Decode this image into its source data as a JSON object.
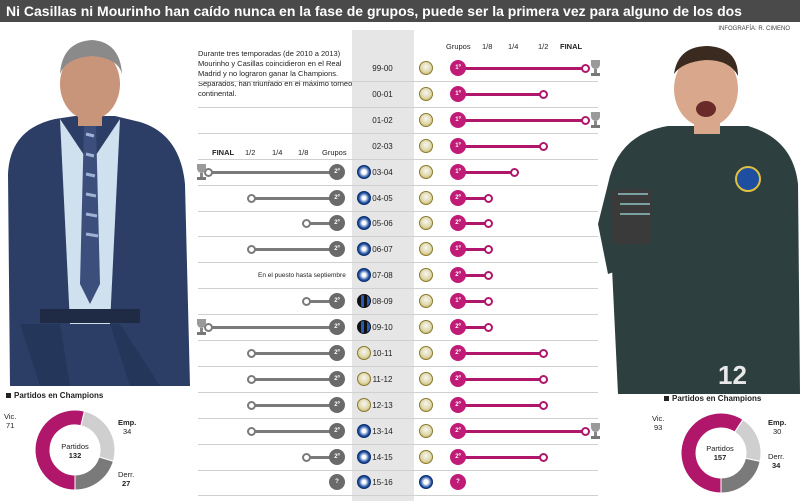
{
  "header": {
    "title": "Ni Casillas ni Mourinho han caído nunca en la fase de grupos, puede ser la primera vez para alguno de los dos",
    "credit": "INFOGRAFÍA: R. CIMENO"
  },
  "intro": {
    "text_regular": "Durante tres temporadas (de 2010 a 2013) Mourinho y Casillas coincidieron en el Real Madrid y no lograron ganar la Champions. Separados, han triunfado en el máximo torneo continental."
  },
  "legend_left": {
    "final": "FINAL",
    "half": "1/2",
    "quarter": "1/4",
    "eighth": "1/8",
    "groups": "Grupos"
  },
  "legend_right": {
    "groups": "Grupos",
    "eighth": "1/8",
    "quarter": "1/4",
    "half": "1/2",
    "final": "FINAL"
  },
  "seasons": [
    {
      "label": "99-00",
      "right_badge": "real-madrid",
      "right_reach": "final",
      "right_trophy": true,
      "left": null
    },
    {
      "label": "00-01",
      "right_badge": "real-madrid",
      "right_reach": "half",
      "right_trophy": false,
      "left": null
    },
    {
      "label": "01-02",
      "right_badge": "real-madrid",
      "right_reach": "final",
      "right_trophy": true,
      "left": null
    },
    {
      "label": "02-03",
      "right_badge": "real-madrid",
      "right_reach": "half",
      "right_trophy": false,
      "left": null
    },
    {
      "label": "03-04",
      "right_badge": "real-madrid",
      "right_reach": "quarter",
      "right_trophy": false,
      "left": {
        "badge": "porto",
        "reach": "final",
        "trophy": true
      }
    },
    {
      "label": "04-05",
      "right_badge": "real-madrid",
      "right_reach": "eighth",
      "right_trophy": false,
      "left": {
        "badge": "chelsea",
        "reach": "half",
        "trophy": false
      }
    },
    {
      "label": "05-06",
      "right_badge": "real-madrid",
      "right_reach": "eighth",
      "right_trophy": false,
      "left": {
        "badge": "chelsea",
        "reach": "eighth",
        "trophy": false
      }
    },
    {
      "label": "06-07",
      "right_badge": "real-madrid",
      "right_reach": "eighth",
      "right_trophy": false,
      "left": {
        "badge": "chelsea",
        "reach": "half",
        "trophy": false
      }
    },
    {
      "label": "07-08",
      "right_badge": "real-madrid",
      "right_reach": "eighth",
      "right_trophy": false,
      "left": {
        "badge": "chelsea",
        "reach": "note",
        "trophy": false
      }
    },
    {
      "label": "08-09",
      "right_badge": "real-madrid",
      "right_reach": "eighth",
      "right_trophy": false,
      "left": {
        "badge": "inter",
        "reach": "eighth",
        "trophy": false
      }
    },
    {
      "label": "09-10",
      "right_badge": "real-madrid",
      "right_reach": "eighth",
      "right_trophy": false,
      "left": {
        "badge": "inter",
        "reach": "final",
        "trophy": true
      }
    },
    {
      "label": "10-11",
      "right_badge": "real-madrid",
      "right_reach": "half",
      "right_trophy": false,
      "left": {
        "badge": "real-madrid",
        "reach": "half",
        "trophy": false
      }
    },
    {
      "label": "11-12",
      "right_badge": "real-madrid",
      "right_reach": "half",
      "right_trophy": false,
      "left": {
        "badge": "real-madrid",
        "reach": "half",
        "trophy": false
      }
    },
    {
      "label": "12-13",
      "right_badge": "real-madrid",
      "right_reach": "half",
      "right_trophy": false,
      "left": {
        "badge": "real-madrid",
        "reach": "half",
        "trophy": false
      }
    },
    {
      "label": "13-14",
      "right_badge": "real-madrid",
      "right_reach": "final",
      "right_trophy": true,
      "left": {
        "badge": "chelsea",
        "reach": "half",
        "trophy": false
      }
    },
    {
      "label": "14-15",
      "right_badge": "real-madrid",
      "right_reach": "half",
      "right_trophy": false,
      "left": {
        "badge": "chelsea",
        "reach": "eighth",
        "trophy": false
      }
    },
    {
      "label": "15-16",
      "right_badge": "porto",
      "right_reach": "unknown",
      "right_trophy": false,
      "left": {
        "badge": "chelsea",
        "reach": "unknown",
        "trophy": false
      }
    }
  ],
  "marks": {
    "groups": "1º",
    "groups2": "2º",
    "unknown": "?"
  },
  "note_0708": "En el puesto hasta septiembre",
  "stats_left": {
    "title": "Partidos en Champions",
    "center_label": "Partidos",
    "total": "132",
    "wins_label": "Vic.",
    "wins": "71",
    "draws_label": "Emp.",
    "draws": "34",
    "losses_label": "Derr.",
    "losses": "27"
  },
  "stats_right": {
    "title": "Partidos en Champions",
    "center_label": "Partidos",
    "total": "157",
    "wins_label": "Vic.",
    "wins": "93",
    "draws_label": "Emp.",
    "draws": "30",
    "losses_label": "Derr.",
    "losses": "34"
  },
  "colors": {
    "magenta": "#b0176a",
    "grey": "#7a7a7a",
    "light": "#cfcfcf",
    "header": "#4a4a4a"
  }
}
